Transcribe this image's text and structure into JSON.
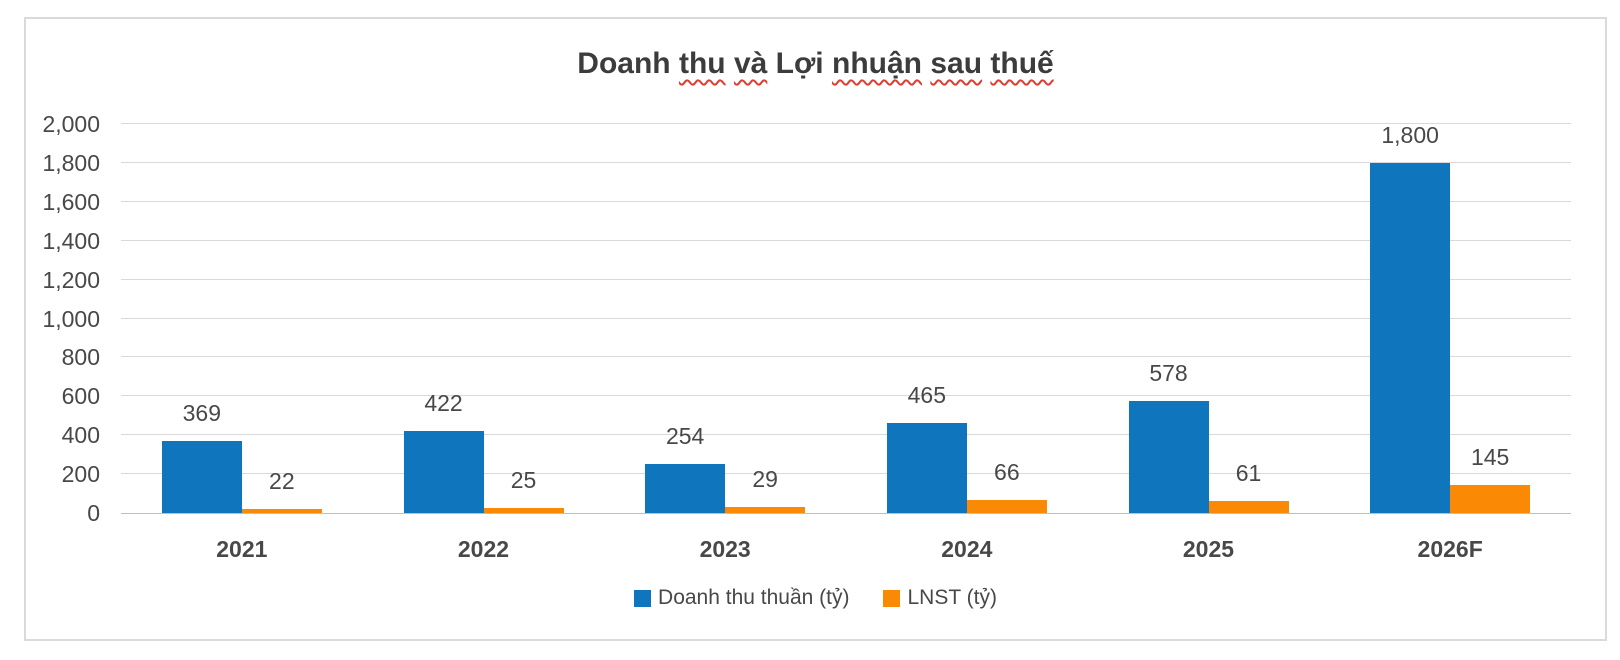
{
  "colors": {
    "revenue_blue": "#0f75bc",
    "profit_orange": "#fa8a05",
    "text_gray": "#484848",
    "title_gray": "#3c3c3c",
    "gridline": "#d9d9d9",
    "axis_line": "#bfbfbf",
    "frame_border": "#dadada",
    "spellcheck_red": "#e03c31"
  },
  "title": {
    "full": "Doanh thu và Lợi nhuận sau thuế",
    "words": [
      {
        "t": "Doanh",
        "sq": false
      },
      {
        "t": "thu",
        "sq": true
      },
      {
        "t": "và",
        "sq": true
      },
      {
        "t": "Lợi",
        "sq": false
      },
      {
        "t": "nhuận",
        "sq": true
      },
      {
        "t": "sau",
        "sq": true
      },
      {
        "t": "thuế",
        "sq": true
      }
    ]
  },
  "chart_data": {
    "type": "bar",
    "title": "Doanh thu và Lợi nhuận sau thuế",
    "categories": [
      "2021",
      "2022",
      "2023",
      "2024",
      "2025",
      "2026F"
    ],
    "series": [
      {
        "name": "Doanh thu thuần (tỷ)",
        "color": "#0f75bc",
        "values": [
          369,
          422,
          254,
          465,
          578,
          1800
        ],
        "labels": [
          "369",
          "422",
          "254",
          "465",
          "578",
          "1,800"
        ]
      },
      {
        "name": "LNST (tỷ)",
        "color": "#fa8a05",
        "values": [
          22,
          25,
          29,
          66,
          61,
          145
        ],
        "labels": [
          "22",
          "25",
          "29",
          "66",
          "61",
          "145"
        ]
      }
    ],
    "xlabel": "",
    "ylabel": "",
    "y_axis": {
      "min": 0,
      "max": 2000,
      "step": 200,
      "tick_labels": [
        "0",
        "200",
        "400",
        "600",
        "800",
        "1,000",
        "1,200",
        "1,400",
        "1,600",
        "1,800",
        "2,000"
      ]
    },
    "grid": true,
    "legend_position": "bottom",
    "data_labels": "outside-end"
  }
}
